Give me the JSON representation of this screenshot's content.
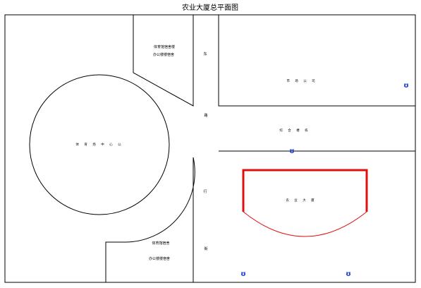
{
  "title": "农业大厦总平面图",
  "colors": {
    "line": "#000000",
    "highlight": "#e01010",
    "marker": "#1a3fd1"
  },
  "regions": {
    "plaza": "体 育 场 中 心 公",
    "north_block_line1": "体育馆宿舍楼",
    "north_block_line2": "办公楼楼宿舍",
    "upper_right": "市 场 公 司",
    "middle_right": "综 合 楼 栋",
    "building": "农 业 大 厦",
    "south_block_line1": "体育馆宿舍",
    "south_block_line2": "办公楼楼宿舍"
  },
  "road_labels": [
    "东",
    "路",
    "行",
    "街"
  ],
  "markers": {
    "icon": "hydrant-icon",
    "glyph": "ʊ"
  }
}
